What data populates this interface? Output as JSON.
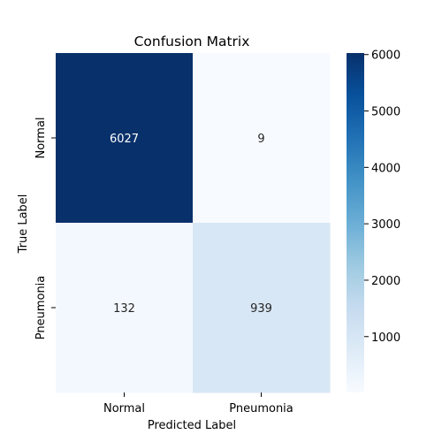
{
  "chart_data": {
    "type": "heatmap",
    "title": "Confusion Matrix",
    "xlabel": "Predicted Label",
    "ylabel": "True Label",
    "x_categories": [
      "Normal",
      "Pneumonia"
    ],
    "y_categories": [
      "Normal",
      "Pneumonia"
    ],
    "values": [
      [
        6027,
        9
      ],
      [
        132,
        939
      ]
    ],
    "colorbar": {
      "range": [
        9,
        6027
      ],
      "ticks": [
        1000,
        2000,
        3000,
        4000,
        5000,
        6000
      ],
      "tick_labels": [
        "1000",
        "2000",
        "3000",
        "4000",
        "5000",
        "6000"
      ]
    },
    "colormap": "Blues",
    "colors": [
      "#f7fbff",
      "#deebf7",
      "#c6dbef",
      "#9ecae1",
      "#6baed6",
      "#4292c6",
      "#2171b5",
      "#08519c",
      "#08306b"
    ],
    "grid": false
  }
}
